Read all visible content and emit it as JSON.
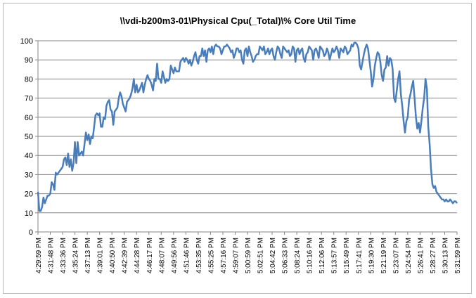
{
  "chart_data": {
    "type": "line",
    "title": "\\\\vdi-b200m3-01\\Physical Cpu(_Total)\\% Core Util Time",
    "xlabel": "",
    "ylabel": "",
    "ylim": [
      0,
      100
    ],
    "yticks": [
      0,
      10,
      20,
      30,
      40,
      50,
      60,
      70,
      80,
      90,
      100
    ],
    "grid": true,
    "legend": "none",
    "line_color": "#4a7ebb",
    "x_tick_labels": [
      "4:29:59 PM",
      "4:31:48 PM",
      "4:33:36 PM",
      "4:35:24 PM",
      "4:37:13 PM",
      "4:39:01 PM",
      "4:40:50 PM",
      "4:42:39 PM",
      "4:44:28 PM",
      "4:46:17 PM",
      "4:48:07 PM",
      "4:49:56 PM",
      "4:51:46 PM",
      "4:53:35 PM",
      "4:55:25 PM",
      "4:57:16 PM",
      "4:59:07 PM",
      "5:00:59 PM",
      "5:02:51 PM",
      "5:04:42 PM",
      "5:06:33 PM",
      "5:08:24 PM",
      "5:10:16 PM",
      "5:12:06 PM",
      "5:13:57 PM",
      "5:15:49 PM",
      "5:17:41 PM",
      "5:19:30 PM",
      "5:21:19 PM",
      "5:23:07 PM",
      "5:24:54 PM",
      "5:26:41 PM",
      "5:28:27 PM",
      "5:30:13 PM",
      "5:31:59 PM"
    ],
    "x_tick_index": [
      0,
      9,
      18,
      27,
      36,
      45,
      54,
      63,
      72,
      81,
      90,
      99,
      108,
      117,
      126,
      135,
      144,
      153,
      162,
      171,
      180,
      189,
      198,
      207,
      216,
      225,
      234,
      243,
      252,
      261,
      270,
      279,
      288,
      297,
      306
    ],
    "series": [
      {
        "values": [
          21,
          11,
          11,
          13,
          18,
          15,
          17,
          19,
          19,
          20,
          26,
          25,
          22,
          31,
          30,
          31,
          32,
          33,
          34,
          38,
          39,
          35,
          41,
          34,
          38,
          32,
          36,
          47,
          36,
          47,
          40,
          41,
          42,
          40,
          46,
          52,
          48,
          51,
          46,
          50,
          49,
          55,
          61,
          62,
          61,
          62,
          55,
          55,
          60,
          59,
          66,
          68,
          69,
          64,
          63,
          56,
          63,
          64,
          65,
          70,
          73,
          71,
          67,
          65,
          63,
          68,
          69,
          70,
          72,
          75,
          80,
          73,
          77,
          73,
          74,
          76,
          78,
          73,
          77,
          80,
          82,
          80,
          79,
          77,
          74,
          80,
          79,
          88,
          80,
          80,
          78,
          84,
          81,
          78,
          80,
          79,
          80,
          87,
          85,
          83,
          86,
          84,
          84,
          84,
          89,
          90,
          91,
          89,
          91,
          90,
          88,
          90,
          87,
          89,
          92,
          94,
          90,
          88,
          92,
          92,
          96,
          92,
          95,
          89,
          95,
          96,
          94,
          97,
          93,
          97,
          98,
          97,
          97,
          96,
          93,
          95,
          97,
          97,
          98,
          97,
          96,
          94,
          95,
          91,
          93,
          96,
          96,
          94,
          95,
          90,
          88,
          95,
          96,
          92,
          97,
          94,
          92,
          89,
          90,
          92,
          93,
          93,
          97,
          96,
          95,
          97,
          93,
          94,
          96,
          93,
          95,
          96,
          92,
          90,
          94,
          97,
          96,
          93,
          91,
          97,
          96,
          95,
          94,
          95,
          92,
          93,
          97,
          96,
          89,
          95,
          96,
          93,
          95,
          96,
          91,
          89,
          93,
          94,
          97,
          96,
          95,
          90,
          95,
          96,
          94,
          91,
          97,
          96,
          95,
          92,
          93,
          96,
          94,
          90,
          93,
          96,
          94,
          95,
          97,
          95,
          91,
          96,
          95,
          94,
          97,
          96,
          93,
          94,
          95,
          98,
          97,
          99,
          99,
          98,
          96,
          87,
          85,
          89,
          93,
          96,
          98,
          96,
          90,
          84,
          76,
          80,
          87,
          91,
          94,
          93,
          89,
          82,
          79,
          85,
          86,
          92,
          87,
          91,
          90,
          85,
          70,
          68,
          74,
          80,
          84,
          72,
          66,
          58,
          52,
          58,
          60,
          69,
          72,
          76,
          79,
          70,
          60,
          54,
          57,
          52,
          58,
          65,
          70,
          80,
          75,
          55,
          46,
          33,
          25,
          23,
          24,
          21,
          20,
          19,
          18,
          17,
          17,
          16,
          17,
          16,
          16,
          17,
          16,
          15,
          16,
          16,
          15
        ]
      }
    ]
  }
}
